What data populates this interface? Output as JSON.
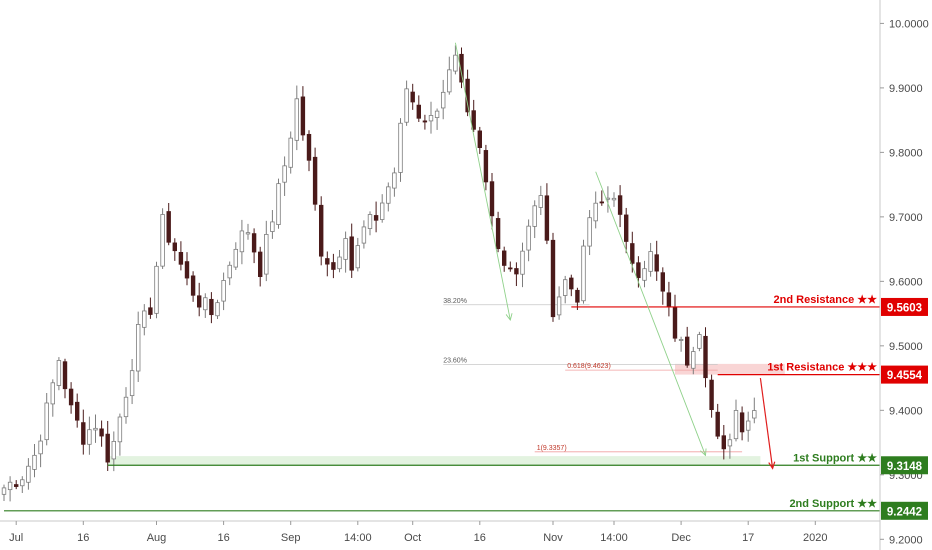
{
  "colors": {
    "background": "#ffffff",
    "up_candle": "#7d7d7d",
    "down_candle": "#4a1a1a",
    "resistance": "#e00000",
    "support": "#2e7d1f",
    "zone_red": "#f7c7c7",
    "zone_green": "#d9efd6",
    "fib_line": "#c8c8c8",
    "arrow_green": "#8fd18a",
    "arrow_red": "#e01e1e"
  },
  "chart_data": {
    "type": "candlestick",
    "title": "",
    "xlabel": "",
    "ylabel": "",
    "ylim": [
      9.1834,
      10.0363
    ],
    "x_ticks": [
      {
        "label": "Jul",
        "i": 2
      },
      {
        "label": "16",
        "i": 13
      },
      {
        "label": "Aug",
        "i": 25
      },
      {
        "label": "16",
        "i": 36
      },
      {
        "label": "Sep",
        "i": 47
      },
      {
        "label": "14:00",
        "i": 58
      },
      {
        "label": "Oct",
        "i": 67
      },
      {
        "label": "16",
        "i": 78
      },
      {
        "label": "Nov",
        "i": 90
      },
      {
        "label": "14:00",
        "i": 100
      },
      {
        "label": "Dec",
        "i": 111
      },
      {
        "label": "17",
        "i": 122
      },
      {
        "label": "2020",
        "i": 133
      }
    ],
    "y_ticks": [
      "10.0000",
      "9.9000",
      "9.8000",
      "9.7000",
      "9.6000",
      "9.5000",
      "9.4000",
      "9.3000",
      "9.2000"
    ],
    "candle_count": 140,
    "anchors": [
      [
        0,
        9.28
      ],
      [
        3,
        9.3
      ],
      [
        5,
        9.33
      ],
      [
        7,
        9.4
      ],
      [
        9,
        9.48
      ],
      [
        11,
        9.4
      ],
      [
        13,
        9.36
      ],
      [
        15,
        9.38
      ],
      [
        17,
        9.33
      ],
      [
        18,
        9.35
      ],
      [
        20,
        9.43
      ],
      [
        22,
        9.52
      ],
      [
        24,
        9.56
      ],
      [
        26,
        9.69
      ],
      [
        28,
        9.65
      ],
      [
        30,
        9.6
      ],
      [
        32,
        9.57
      ],
      [
        34,
        9.55
      ],
      [
        36,
        9.6
      ],
      [
        38,
        9.66
      ],
      [
        40,
        9.68
      ],
      [
        42,
        9.62
      ],
      [
        44,
        9.7
      ],
      [
        46,
        9.78
      ],
      [
        48,
        9.88
      ],
      [
        50,
        9.78
      ],
      [
        52,
        9.65
      ],
      [
        54,
        9.62
      ],
      [
        56,
        9.68
      ],
      [
        57,
        9.62
      ],
      [
        59,
        9.68
      ],
      [
        61,
        9.7
      ],
      [
        64,
        9.77
      ],
      [
        66,
        9.9
      ],
      [
        68,
        9.86
      ],
      [
        70,
        9.85
      ],
      [
        72,
        9.9
      ],
      [
        74,
        9.94
      ],
      [
        76,
        9.85
      ],
      [
        78,
        9.8
      ],
      [
        80,
        9.7
      ],
      [
        82,
        9.63
      ],
      [
        84,
        9.62
      ],
      [
        86,
        9.68
      ],
      [
        88,
        9.74
      ],
      [
        90,
        9.56
      ],
      [
        92,
        9.6
      ],
      [
        94,
        9.58
      ],
      [
        96,
        9.7
      ],
      [
        98,
        9.72
      ],
      [
        100,
        9.74
      ],
      [
        102,
        9.65
      ],
      [
        104,
        9.62
      ],
      [
        106,
        9.64
      ],
      [
        108,
        9.58
      ],
      [
        110,
        9.52
      ],
      [
        112,
        9.48
      ],
      [
        114,
        9.53
      ],
      [
        116,
        9.4
      ],
      [
        117,
        9.35
      ],
      [
        118,
        9.33
      ],
      [
        120,
        9.4
      ],
      [
        121,
        9.38
      ],
      [
        123,
        9.4
      ]
    ],
    "levels": [
      {
        "name": "2nd Resistance",
        "value": 9.5603,
        "label": "2nd Resistance ★★",
        "value_label": "9.5603"
      },
      {
        "name": "1st Resistance",
        "value": 9.4554,
        "label": "1st Resistance ★★★",
        "value_label": "9.4554"
      },
      {
        "name": "1st Support",
        "value": 9.3148,
        "label": "1st Support ★★",
        "value_label": "9.3148"
      },
      {
        "name": "2nd Support",
        "value": 9.2442,
        "label": "2nd Support ★★",
        "value_label": "9.2442"
      }
    ],
    "zones": [
      {
        "name": "resistance-zone",
        "from": 9.4554,
        "to": 9.472,
        "i_from": 110,
        "i_to": 128
      },
      {
        "name": "support-zone",
        "from": 9.3148,
        "to": 9.329,
        "i_from": 17,
        "i_to": 124
      }
    ],
    "fibonacci": [
      {
        "label": "38.20%",
        "value": 9.5637,
        "i_from": 72,
        "i_to": 96
      },
      {
        "label": "23.60%",
        "value": 9.4712,
        "i_from": 72,
        "i_to": 117
      },
      {
        "label": "0.618(9.4623)",
        "value": 9.4623,
        "i_from": 92,
        "i_to": 117
      },
      {
        "label": "1(9.3357)",
        "value": 9.3357,
        "i_from": 87,
        "i_to": 121
      }
    ],
    "arrows": [
      {
        "name": "swing-arrow-1",
        "from": [
          74,
          9.97
        ],
        "to": [
          83,
          9.54
        ],
        "color": "arrow_green"
      },
      {
        "name": "swing-arrow-2",
        "from": [
          97,
          9.77
        ],
        "to": [
          115,
          9.33
        ],
        "color": "arrow_green"
      },
      {
        "name": "target-arrow",
        "from": [
          124,
          9.45
        ],
        "to": [
          126,
          9.31
        ],
        "color": "arrow_red"
      }
    ]
  }
}
